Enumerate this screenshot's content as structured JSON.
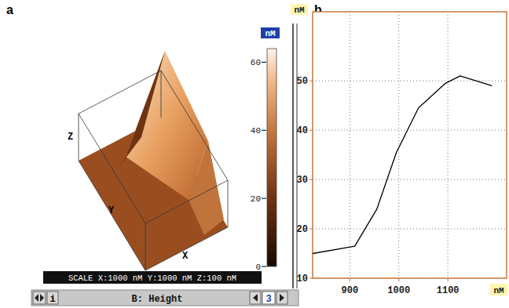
{
  "panel_labels": [
    "a",
    "b"
  ],
  "afm_view": {
    "axis_labels": {
      "x": "X",
      "y": "Y",
      "z": "Z"
    },
    "colorbar": {
      "unit": "nM",
      "range": [
        0,
        64
      ],
      "ticks": [
        0,
        20,
        40,
        60
      ]
    },
    "scale_text": "SCALE X:1000 nM Y:1000 nM Z:100 nM",
    "channel": "B: Height",
    "info_button": "i",
    "page": "3"
  },
  "chart_data": {
    "type": "line",
    "x": [
      824,
      910,
      955,
      995,
      1040,
      1095,
      1125,
      1190
    ],
    "values": [
      15,
      16.5,
      24,
      35.5,
      44.5,
      49.5,
      51,
      49
    ],
    "color": "#000000",
    "x_label": "nM",
    "y_label": "nM",
    "xlim": [
      824,
      1220
    ],
    "ylim": [
      10,
      64
    ],
    "xticks": [
      900,
      1000,
      1100
    ],
    "yticks": [
      10,
      20,
      30,
      40,
      50
    ],
    "grid": true
  }
}
